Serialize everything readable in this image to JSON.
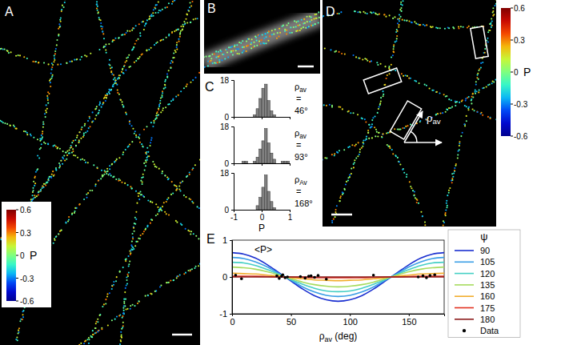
{
  "figure": {
    "panel_labels": [
      "A",
      "B",
      "C",
      "D",
      "E"
    ],
    "colorbars": [
      {
        "title": "P",
        "range": [
          -0.6,
          0.6
        ],
        "ticks": [
          -0.6,
          -0.3,
          0,
          0.3,
          0.6
        ]
      },
      {
        "title": "P",
        "range": [
          -0.6,
          0.6
        ],
        "ticks": [
          -0.6,
          -0.3,
          0,
          0.3,
          0.6
        ]
      }
    ],
    "angle_label": {
      "main": "ρ",
      "sub": "av"
    }
  },
  "chart_data": [
    {
      "type": "histogram",
      "color": "#808080",
      "bins": [
        -1,
        -0.9,
        -0.8,
        -0.7,
        -0.6,
        -0.5,
        -0.4,
        -0.3,
        -0.2,
        -0.1,
        0,
        0.1,
        0.2,
        0.3,
        0.4,
        0.5,
        0.6,
        0.7,
        0.8,
        0.9,
        1
      ],
      "values": [
        0,
        0,
        0,
        0,
        0,
        0,
        0,
        1,
        4,
        9,
        14,
        16,
        8,
        3,
        1,
        0,
        0,
        0,
        0,
        0
      ],
      "xlim": [
        -1,
        1
      ],
      "xticks": [
        -1,
        0,
        1
      ],
      "ylim": [
        0,
        18
      ],
      "yticks": [
        0,
        18
      ],
      "tick_labels": "y",
      "annotation": {
        "main": "ρ",
        "sub": "av",
        "eq": "=",
        "value": "46°"
      }
    },
    {
      "type": "histogram",
      "color": "#808080",
      "bins": [
        -1,
        -0.9,
        -0.8,
        -0.7,
        -0.6,
        -0.5,
        -0.4,
        -0.3,
        -0.2,
        -0.1,
        0,
        0.1,
        0.2,
        0.3,
        0.4,
        0.5,
        0.6,
        0.7,
        0.8,
        0.9,
        1
      ],
      "values": [
        0,
        0,
        0,
        1,
        1,
        0,
        0,
        1,
        3,
        7,
        11,
        17,
        10,
        5,
        2,
        0,
        0,
        1,
        1,
        1
      ],
      "xlim": [
        -1,
        1
      ],
      "xticks": [
        -1,
        0,
        1
      ],
      "ylim": [
        0,
        18
      ],
      "yticks": [
        0,
        18
      ],
      "tick_labels": "y",
      "annotation": {
        "main": "ρ",
        "sub": "av",
        "eq": "=",
        "value": "93°"
      }
    },
    {
      "type": "histogram",
      "color": "#808080",
      "bins": [
        -1,
        -0.9,
        -0.8,
        -0.7,
        -0.6,
        -0.5,
        -0.4,
        -0.3,
        -0.2,
        -0.1,
        0,
        0.1,
        0.2,
        0.3,
        0.4,
        0.5,
        0.6,
        0.7,
        0.8,
        0.9,
        1
      ],
      "values": [
        0,
        0,
        0,
        0,
        0,
        0,
        0,
        0,
        2,
        6,
        11,
        17,
        9,
        4,
        1,
        0,
        0,
        0,
        0,
        0
      ],
      "xlim": [
        -1,
        1
      ],
      "xticks": [
        -1,
        0,
        1
      ],
      "ylim": [
        0,
        18
      ],
      "yticks": [
        0,
        18
      ],
      "xlabel": "P",
      "annotation": {
        "main": "ρ",
        "sub": "Av",
        "eq": "=",
        "value": "168°"
      }
    },
    {
      "type": "line",
      "title": "<P>",
      "xlabel": {
        "main": "ρ",
        "sub": "av",
        "after": " (deg)"
      },
      "legend": "right",
      "legend_title": "ψ",
      "x": [
        0,
        10,
        20,
        30,
        40,
        50,
        60,
        70,
        80,
        90,
        100,
        110,
        120,
        130,
        140,
        150,
        160,
        170,
        180
      ],
      "xlim": [
        0,
        180
      ],
      "xticks": [
        0,
        50,
        100,
        150
      ],
      "ylim": [
        -1,
        1
      ],
      "yticks": [
        -1,
        0,
        1
      ],
      "series": [
        {
          "name": "90",
          "color": "#1a2fd0",
          "type": "line",
          "line_style": "solid",
          "values": [
            0.66,
            0.62,
            0.51,
            0.33,
            0.11,
            -0.11,
            -0.33,
            -0.51,
            -0.62,
            -0.66,
            -0.62,
            -0.51,
            -0.33,
            -0.11,
            0.11,
            0.33,
            0.51,
            0.62,
            0.66
          ]
        },
        {
          "name": "105",
          "color": "#3a9ee6",
          "type": "line",
          "line_style": "solid",
          "values": [
            0.53,
            0.5,
            0.41,
            0.27,
            0.09,
            -0.09,
            -0.27,
            -0.41,
            -0.5,
            -0.53,
            -0.5,
            -0.41,
            -0.27,
            -0.09,
            0.09,
            0.27,
            0.41,
            0.5,
            0.53
          ]
        },
        {
          "name": "120",
          "color": "#45cfc4",
          "type": "line",
          "line_style": "solid",
          "values": [
            0.4,
            0.38,
            0.31,
            0.2,
            0.07,
            -0.07,
            -0.2,
            -0.31,
            -0.38,
            -0.4,
            -0.38,
            -0.31,
            -0.2,
            -0.07,
            0.07,
            0.2,
            0.31,
            0.38,
            0.4
          ]
        },
        {
          "name": "135",
          "color": "#a6dc5e",
          "type": "line",
          "line_style": "solid",
          "values": [
            0.27,
            0.25,
            0.21,
            0.14,
            0.05,
            -0.05,
            -0.14,
            -0.21,
            -0.25,
            -0.27,
            -0.25,
            -0.21,
            -0.14,
            -0.05,
            0.05,
            0.14,
            0.21,
            0.25,
            0.27
          ]
        },
        {
          "name": "160",
          "color": "#f2ae2e",
          "type": "line",
          "line_style": "solid",
          "values": [
            0.1,
            0.09,
            0.08,
            0.05,
            0.02,
            -0.02,
            -0.05,
            -0.08,
            -0.09,
            -0.1,
            -0.09,
            -0.08,
            -0.05,
            -0.02,
            0.02,
            0.05,
            0.08,
            0.09,
            0.1
          ]
        },
        {
          "name": "175",
          "color": "#e2301e",
          "type": "line",
          "line_style": "solid",
          "values": [
            0.02,
            0.02,
            0.02,
            0.01,
            0,
            0,
            -0.01,
            -0.02,
            -0.02,
            -0.02,
            -0.02,
            -0.02,
            -0.01,
            0,
            0,
            0.01,
            0.02,
            0.02,
            0.02
          ]
        },
        {
          "name": "180",
          "color": "#8b1a1a",
          "type": "line",
          "line_style": "solid",
          "values": [
            0,
            0,
            0,
            0,
            0,
            0,
            0,
            0,
            0,
            0,
            0,
            0,
            0,
            0,
            0,
            0,
            0,
            0,
            0
          ]
        },
        {
          "name": "Data",
          "color": "#000000",
          "type": "scatter",
          "marker": "circle",
          "x": [
            3,
            8,
            38,
            40,
            42,
            43,
            45,
            47,
            58,
            62,
            65,
            67,
            70,
            73,
            80,
            120,
            158,
            162,
            165,
            168,
            172
          ],
          "values": [
            0.05,
            -0.05,
            0.03,
            -0.04,
            0.02,
            0.06,
            -0.02,
            0,
            0.01,
            -0.03,
            0.02,
            0.03,
            -0.01,
            0.04,
            -0.06,
            0.05,
            0,
            0.03,
            -0.02,
            0.04,
            0.06
          ]
        }
      ]
    }
  ]
}
